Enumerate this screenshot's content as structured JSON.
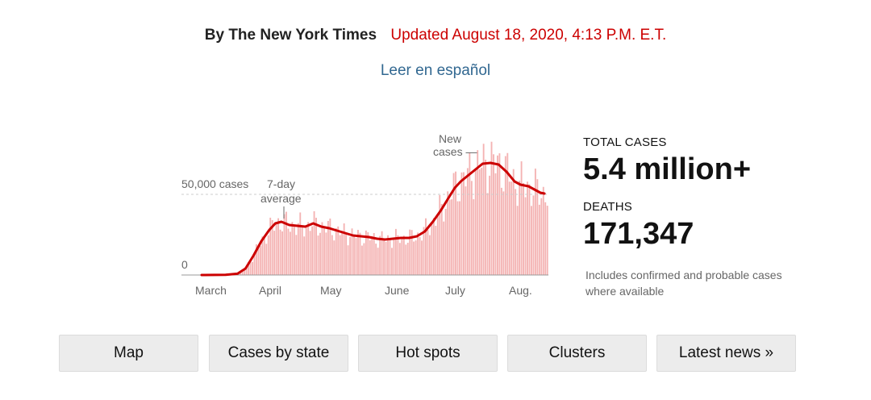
{
  "header": {
    "byline": "By The New York Times",
    "updated": "Updated August 18, 2020, 4:13 P.M. E.T.",
    "spanish_link": "Leer en español"
  },
  "chart_data": {
    "type": "bar",
    "ylabels": [
      "50,000 cases",
      "0"
    ],
    "annotations": {
      "avg_label_1": "7-day",
      "avg_label_2": "average",
      "new_label_1": "New",
      "new_label_2": "cases —"
    },
    "xlabels": [
      "March",
      "April",
      "May",
      "June",
      "July",
      "Aug."
    ],
    "ylim": [
      0,
      75000
    ],
    "bar_color": "#f4b3b3",
    "line_color": "#cc0000",
    "days_x_ticks": [
      10,
      41,
      71,
      102,
      132,
      163
    ],
    "avg_points": [
      [
        0,
        0
      ],
      [
        12,
        150
      ],
      [
        18,
        800
      ],
      [
        22,
        4000
      ],
      [
        26,
        12000
      ],
      [
        30,
        21000
      ],
      [
        34,
        28000
      ],
      [
        37,
        32000
      ],
      [
        40,
        33000
      ],
      [
        44,
        31000
      ],
      [
        48,
        30500
      ],
      [
        52,
        30000
      ],
      [
        56,
        32000
      ],
      [
        60,
        30000
      ],
      [
        64,
        29000
      ],
      [
        68,
        27500
      ],
      [
        72,
        26000
      ],
      [
        76,
        24500
      ],
      [
        80,
        24000
      ],
      [
        84,
        23500
      ],
      [
        88,
        22500
      ],
      [
        92,
        22000
      ],
      [
        96,
        22500
      ],
      [
        100,
        23000
      ],
      [
        104,
        23000
      ],
      [
        108,
        24000
      ],
      [
        112,
        27000
      ],
      [
        116,
        33000
      ],
      [
        120,
        40000
      ],
      [
        124,
        48000
      ],
      [
        127,
        54000
      ],
      [
        130,
        58000
      ],
      [
        134,
        62000
      ],
      [
        138,
        66000
      ],
      [
        141,
        69000
      ],
      [
        145,
        69500
      ],
      [
        149,
        68500
      ],
      [
        153,
        64000
      ],
      [
        157,
        58000
      ],
      [
        160,
        56000
      ],
      [
        164,
        55000
      ],
      [
        167,
        53000
      ],
      [
        170,
        51000
      ],
      [
        172,
        50500
      ]
    ],
    "total_days": 174
  },
  "stats": {
    "total_label": "TOTAL CASES",
    "total_value": "5.4 million+",
    "deaths_label": "DEATHS",
    "deaths_value": "171,347",
    "note": "Includes confirmed and probable cases where available"
  },
  "nav": [
    "Map",
    "Cases by state",
    "Hot spots",
    "Clusters",
    "Latest news »"
  ]
}
